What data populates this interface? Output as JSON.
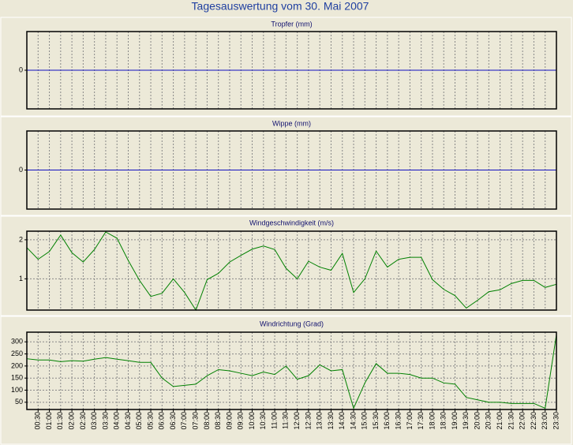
{
  "title": "Tagesauswertung vom 30. Mai 2007",
  "chart_data": [
    {
      "type": "line",
      "title": "Tropfer (mm)",
      "ylim": [
        -1,
        1
      ],
      "yticks": [
        0
      ],
      "grid": true,
      "series": [
        {
          "color": "#1010c0",
          "values": [
            0,
            0,
            0,
            0,
            0,
            0,
            0,
            0,
            0,
            0,
            0,
            0,
            0,
            0,
            0,
            0,
            0,
            0,
            0,
            0,
            0,
            0,
            0,
            0,
            0,
            0,
            0,
            0,
            0,
            0,
            0,
            0,
            0,
            0,
            0,
            0,
            0,
            0,
            0,
            0,
            0,
            0,
            0,
            0,
            0,
            0,
            0,
            0
          ]
        }
      ]
    },
    {
      "type": "line",
      "title": "Wippe (mm)",
      "ylim": [
        -1,
        1
      ],
      "yticks": [
        0
      ],
      "grid": true,
      "series": [
        {
          "color": "#1010c0",
          "values": [
            0,
            0,
            0,
            0,
            0,
            0,
            0,
            0,
            0,
            0,
            0,
            0,
            0,
            0,
            0,
            0,
            0,
            0,
            0,
            0,
            0,
            0,
            0,
            0,
            0,
            0,
            0,
            0,
            0,
            0,
            0,
            0,
            0,
            0,
            0,
            0,
            0,
            0,
            0,
            0,
            0,
            0,
            0,
            0,
            0,
            0,
            0,
            0
          ]
        }
      ]
    },
    {
      "type": "line",
      "title": "Windgeschwindigkeit (m/s)",
      "ylim": [
        0.2,
        2.22
      ],
      "yticks": [
        1,
        2
      ],
      "grid": true,
      "series": [
        {
          "color": "#008000",
          "values": [
            1.8,
            1.5,
            1.7,
            2.12,
            1.67,
            1.43,
            1.75,
            2.2,
            2.04,
            1.47,
            0.96,
            0.55,
            0.63,
            1.0,
            0.65,
            0.2,
            0.98,
            1.14,
            1.43,
            1.6,
            1.76,
            1.84,
            1.75,
            1.27,
            1.0,
            1.45,
            1.3,
            1.22,
            1.65,
            0.65,
            1.0,
            1.71,
            1.3,
            1.5,
            1.55,
            1.55,
            0.98,
            0.73,
            0.57,
            0.25,
            0.45,
            0.67,
            0.72,
            0.88,
            0.96,
            0.96,
            0.78,
            0.86
          ]
        }
      ]
    },
    {
      "type": "line",
      "title": "Windrichtung (Grad)",
      "ylim": [
        20,
        340
      ],
      "yticks": [
        50,
        100,
        150,
        200,
        250,
        300
      ],
      "grid": true,
      "categories": [
        null,
        "00:30",
        "01:00",
        "01:30",
        "02:00",
        "02:30",
        "03:00",
        "03:30",
        "04:00",
        "04:30",
        "05:00",
        "05:30",
        "06:00",
        "06:30",
        "07:00",
        "07:30",
        "08:00",
        "08:30",
        "09:00",
        "09:30",
        "10:00",
        "10:30",
        "11:00",
        "11:30",
        "12:00",
        "12:30",
        "13:00",
        "13:30",
        "14:00",
        "14:30",
        "15:00",
        "15:30",
        "16:00",
        "16:30",
        "17:00",
        "17:30",
        "18:00",
        "18:30",
        "19:00",
        "19:30",
        "20:00",
        "20:30",
        "21:00",
        "21:30",
        "22:00",
        "22:30",
        "23:00",
        "23:30"
      ],
      "series": [
        {
          "color": "#008000",
          "values": [
            230,
            225,
            225,
            218,
            222,
            220,
            228,
            235,
            228,
            222,
            215,
            215,
            150,
            115,
            120,
            125,
            160,
            185,
            180,
            170,
            160,
            175,
            165,
            200,
            145,
            160,
            205,
            180,
            185,
            25,
            130,
            210,
            170,
            170,
            165,
            150,
            150,
            130,
            125,
            70,
            60,
            50,
            50,
            45,
            45,
            45,
            25,
            330
          ]
        }
      ]
    }
  ]
}
